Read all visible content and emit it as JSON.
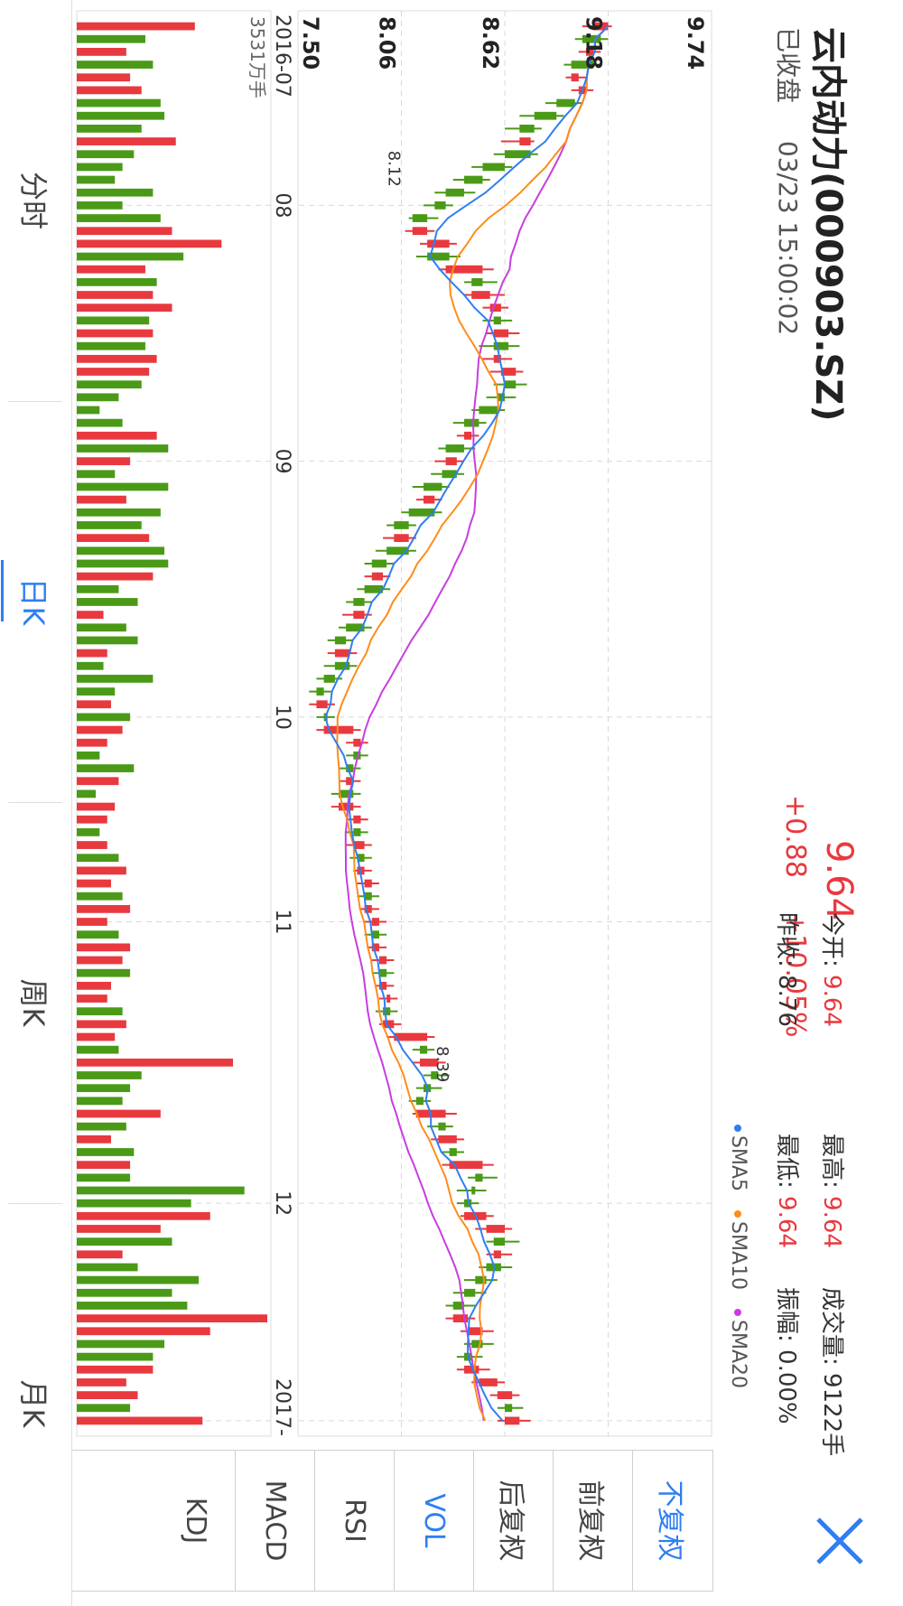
{
  "header": {
    "title": "云内动力(000903.SZ)",
    "market_status": "已收盘",
    "datetime": "03/23 15:00:02",
    "price": "9.64",
    "change": "+0.88",
    "change_pct": "+10.05%"
  },
  "stats": {
    "open_label": "今开:",
    "open_value": "9.64",
    "prev_close_label": "昨收:",
    "prev_close_value": "8.76",
    "high_label": "最高:",
    "high_value": "9.64",
    "low_label": "最低:",
    "low_value": "9.64",
    "volume_label": "成交量:",
    "volume_value": "9122手",
    "amplitude_label": "振幅:",
    "amplitude_value": "0.00%"
  },
  "legend": {
    "sma5": "SMA5",
    "sma10": "SMA10",
    "sma20": "SMA20",
    "colors": {
      "sma5": "#2f7ef2",
      "sma10": "#ff8c1a",
      "sma20": "#c83de0",
      "up": "#e8393f",
      "down": "#4a9a17"
    }
  },
  "adjust_buttons": [
    "不复权",
    "前复权",
    "后复权"
  ],
  "indicator_buttons": [
    "VOL",
    "RSI",
    "MACD",
    "KDJ"
  ],
  "tabs": [
    "分时",
    "日K",
    "周K",
    "月K"
  ],
  "active_tab": "日K",
  "chart_data": {
    "type": "candlestick",
    "y_ticks": [
      "9.74",
      "9.18",
      "8.62",
      "8.06",
      "7.50"
    ],
    "ylim": [
      7.5,
      9.74
    ],
    "x_ticks": [
      "2016-07",
      "08",
      "09",
      "10",
      "11",
      "12",
      "2017-"
    ],
    "volume_max_label": "3531万手",
    "annotations": [
      "8.12",
      "8.39"
    ],
    "candles": [
      [
        9.1,
        9.18,
        9.2,
        9.04
      ],
      [
        9.14,
        9.04,
        9.18,
        9.0
      ],
      [
        9.06,
        9.1,
        9.14,
        9.02
      ],
      [
        9.1,
        8.98,
        9.14,
        8.94
      ],
      [
        8.98,
        9.02,
        9.06,
        8.95
      ],
      [
        9.02,
        9.06,
        9.1,
        8.98
      ],
      [
        9.0,
        8.9,
        9.04,
        8.84
      ],
      [
        8.9,
        8.78,
        8.94,
        8.7
      ],
      [
        8.78,
        8.7,
        8.82,
        8.62
      ],
      [
        8.7,
        8.76,
        8.78,
        8.6
      ],
      [
        8.76,
        8.62,
        8.8,
        8.56
      ],
      [
        8.62,
        8.5,
        8.66,
        8.44
      ],
      [
        8.5,
        8.4,
        8.54,
        8.34
      ],
      [
        8.4,
        8.3,
        8.46,
        8.24
      ],
      [
        8.3,
        8.24,
        8.34,
        8.18
      ],
      [
        8.2,
        8.12,
        8.26,
        8.1
      ],
      [
        8.12,
        8.2,
        8.24,
        8.08
      ],
      [
        8.2,
        8.32,
        8.36,
        8.16
      ],
      [
        8.32,
        8.2,
        8.38,
        8.14
      ],
      [
        8.3,
        8.5,
        8.56,
        8.26
      ],
      [
        8.5,
        8.44,
        8.58,
        8.4
      ],
      [
        8.44,
        8.54,
        8.62,
        8.4
      ],
      [
        8.54,
        8.6,
        8.64,
        8.5
      ],
      [
        8.6,
        8.56,
        8.66,
        8.5
      ],
      [
        8.56,
        8.64,
        8.7,
        8.52
      ],
      [
        8.64,
        8.56,
        8.7,
        8.48
      ],
      [
        8.56,
        8.6,
        8.66,
        8.5
      ],
      [
        8.6,
        8.68,
        8.72,
        8.54
      ],
      [
        8.68,
        8.62,
        8.74,
        8.56
      ],
      [
        8.62,
        8.58,
        8.68,
        8.52
      ],
      [
        8.58,
        8.48,
        8.62,
        8.44
      ],
      [
        8.48,
        8.4,
        8.52,
        8.34
      ],
      [
        8.4,
        8.44,
        8.48,
        8.36
      ],
      [
        8.4,
        8.3,
        8.46,
        8.26
      ],
      [
        8.3,
        8.36,
        8.4,
        8.24
      ],
      [
        8.36,
        8.28,
        8.4,
        8.22
      ],
      [
        8.28,
        8.18,
        8.32,
        8.12
      ],
      [
        8.18,
        8.24,
        8.28,
        8.14
      ],
      [
        8.24,
        8.1,
        8.28,
        8.06
      ],
      [
        8.1,
        8.02,
        8.14,
        7.98
      ],
      [
        8.02,
        8.1,
        8.14,
        7.96
      ],
      [
        8.1,
        7.98,
        8.14,
        7.92
      ],
      [
        7.98,
        7.9,
        8.02,
        7.86
      ],
      [
        7.9,
        7.96,
        8.0,
        7.86
      ],
      [
        7.96,
        7.86,
        8.0,
        7.82
      ],
      [
        7.86,
        7.8,
        7.9,
        7.76
      ],
      [
        7.8,
        7.86,
        7.9,
        7.74
      ],
      [
        7.86,
        7.76,
        7.9,
        7.72
      ],
      [
        7.76,
        7.7,
        7.8,
        7.66
      ],
      [
        7.7,
        7.78,
        7.82,
        7.66
      ],
      [
        7.78,
        7.7,
        7.82,
        7.64
      ],
      [
        7.7,
        7.64,
        7.74,
        7.6
      ],
      [
        7.64,
        7.6,
        7.68,
        7.56
      ],
      [
        7.6,
        7.66,
        7.7,
        7.56
      ],
      [
        7.66,
        7.64,
        7.7,
        7.6
      ],
      [
        7.64,
        7.8,
        7.84,
        7.6
      ],
      [
        7.8,
        7.84,
        7.88,
        7.76
      ],
      [
        7.84,
        7.8,
        7.88,
        7.76
      ],
      [
        7.8,
        7.76,
        7.84,
        7.72
      ],
      [
        7.76,
        7.8,
        7.84,
        7.72
      ],
      [
        7.8,
        7.72,
        7.84,
        7.68
      ],
      [
        7.72,
        7.8,
        7.84,
        7.68
      ],
      [
        7.8,
        7.84,
        7.88,
        7.76
      ],
      [
        7.84,
        7.8,
        7.88,
        7.76
      ],
      [
        7.8,
        7.86,
        7.9,
        7.76
      ],
      [
        7.86,
        7.82,
        7.9,
        7.78
      ],
      [
        7.82,
        7.86,
        7.9,
        7.8
      ],
      [
        7.86,
        7.9,
        7.94,
        7.82
      ],
      [
        7.9,
        7.86,
        7.94,
        7.82
      ],
      [
        7.86,
        7.9,
        7.94,
        7.84
      ],
      [
        7.9,
        7.94,
        7.98,
        7.86
      ],
      [
        7.94,
        7.9,
        7.98,
        7.86
      ],
      [
        7.9,
        7.94,
        7.98,
        7.88
      ],
      [
        7.94,
        7.98,
        8.02,
        7.9
      ],
      [
        7.98,
        7.94,
        8.02,
        7.9
      ],
      [
        7.94,
        7.98,
        8.02,
        7.92
      ],
      [
        7.98,
        8.0,
        8.04,
        7.94
      ],
      [
        8.0,
        7.96,
        8.04,
        7.92
      ],
      [
        7.96,
        8.02,
        8.06,
        7.94
      ],
      [
        8.02,
        8.2,
        8.24,
        7.98
      ],
      [
        8.2,
        8.16,
        8.24,
        8.12
      ],
      [
        8.16,
        8.26,
        8.3,
        8.12
      ],
      [
        8.26,
        8.22,
        8.32,
        8.18
      ],
      [
        8.22,
        8.18,
        8.28,
        8.14
      ],
      [
        8.18,
        8.14,
        8.22,
        8.1
      ],
      [
        8.14,
        8.3,
        8.36,
        8.12
      ],
      [
        8.3,
        8.26,
        8.34,
        8.2
      ],
      [
        8.26,
        8.36,
        8.4,
        8.22
      ],
      [
        8.36,
        8.32,
        8.4,
        8.28
      ],
      [
        8.32,
        8.5,
        8.56,
        8.28
      ],
      [
        8.5,
        8.46,
        8.58,
        8.42
      ],
      [
        8.46,
        8.44,
        8.52,
        8.36
      ],
      [
        8.44,
        8.4,
        8.48,
        8.36
      ],
      [
        8.4,
        8.52,
        8.56,
        8.38
      ],
      [
        8.52,
        8.62,
        8.66,
        8.46
      ],
      [
        8.62,
        8.56,
        8.7,
        8.52
      ],
      [
        8.56,
        8.6,
        8.66,
        8.52
      ],
      [
        8.6,
        8.52,
        8.66,
        8.48
      ],
      [
        8.52,
        8.46,
        8.58,
        8.4
      ],
      [
        8.46,
        8.4,
        8.52,
        8.34
      ],
      [
        8.4,
        8.34,
        8.46,
        8.3
      ],
      [
        8.34,
        8.42,
        8.46,
        8.3
      ],
      [
        8.42,
        8.5,
        8.56,
        8.38
      ],
      [
        8.5,
        8.44,
        8.56,
        8.4
      ],
      [
        8.44,
        8.4,
        8.5,
        8.36
      ],
      [
        8.4,
        8.48,
        8.54,
        8.36
      ],
      [
        8.48,
        8.58,
        8.62,
        8.44
      ],
      [
        8.58,
        8.66,
        8.7,
        8.54
      ],
      [
        8.66,
        8.62,
        8.72,
        8.58
      ],
      [
        8.62,
        8.7,
        8.76,
        8.58
      ]
    ],
    "volumes": [
      31,
      18,
      13,
      20,
      14,
      17,
      22,
      23,
      17,
      26,
      15,
      12,
      10,
      20,
      12,
      22,
      25,
      38,
      28,
      18,
      21,
      20,
      25,
      19,
      20,
      18,
      21,
      19,
      17,
      11,
      6,
      12,
      21,
      24,
      14,
      10,
      24,
      13,
      22,
      17,
      19,
      23,
      24,
      20,
      11,
      16,
      7,
      13,
      16,
      8,
      7,
      20,
      10,
      9,
      14,
      12,
      8,
      6,
      15,
      11,
      5,
      10,
      8,
      6,
      8,
      11,
      13,
      9,
      12,
      14,
      8,
      11,
      14,
      12,
      14,
      9,
      8,
      12,
      13,
      10,
      11,
      41,
      17,
      14,
      12,
      22,
      13,
      9,
      15,
      14,
      14,
      44,
      30,
      35,
      22,
      25,
      12,
      16,
      32,
      25,
      29,
      50,
      35,
      23,
      20,
      20,
      13,
      16,
      14,
      33,
      37
    ]
  }
}
